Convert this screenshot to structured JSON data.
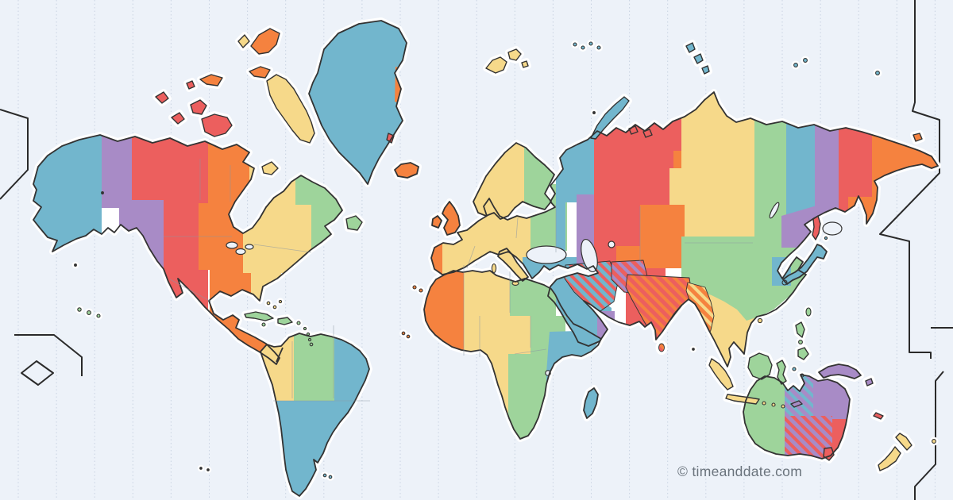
{
  "map": {
    "title": "world-time-zones-map",
    "copyright": "© timeanddate.com",
    "gridlines": {
      "count": 25,
      "style": "dotted-vertical-meridians-every-15-degrees"
    },
    "colors": {
      "background": "#edf2f9",
      "gridline": "#c9d3e2",
      "outline": "#333333",
      "halo": "#ffffff",
      "border": "#8b96a3",
      "date_line": "#2a2a2a",
      "copyright_text": "#6a737c",
      "tiny_islet": "#333333"
    },
    "palette": {
      "orange": "#f5823f",
      "yellow": "#f6d98a",
      "green": "#9ed49b",
      "teal": "#72b6cd",
      "purple": "#a88bc6",
      "red": "#ec5f5e"
    },
    "zone_color_cycle": [
      "orange",
      "yellow",
      "green",
      "teal",
      "purple",
      "red"
    ],
    "zone_color_examples": {
      "teal": "Alaska, Greenland, Moscow, Arabia, East Africa, Japan, Brazil-east/Argentina",
      "purple": "US Pacific, Samara/Caucasus, Oman, eastern-Australia-Queensland, New Guinea",
      "red": "US Mountain, NW Canada, Pakistan, Magadan, SE Australia, Tasmania",
      "orange": "US Central, Mexico, UK/Ireland, Iceland, West Africa, Chukotka/Kamchatka",
      "yellow": "US Eastern, Quebec, Central Europe, Krasnoyarsk, Indochina, New Zealand",
      "green": "Atlantic Canada, Caribbean, Eastern Europe, Egypt, China, Western Australia"
    },
    "striped_half_hour_zones": [
      {
        "region": "iran",
        "base": "teal",
        "stripe": "red"
      },
      {
        "region": "afghanistan",
        "base": "red",
        "stripe": "purple"
      },
      {
        "region": "india-sri-lanka-nepal",
        "base": "red",
        "stripe": "orange"
      },
      {
        "region": "myanmar",
        "base": "orange",
        "stripe": "yellow"
      },
      {
        "region": "australia-northern-territory",
        "base": "purple",
        "stripe": "teal"
      },
      {
        "region": "australia-south",
        "base": "purple",
        "stripe": "red"
      }
    ],
    "date_line_note": "International Date Line drawn as black zigzag polylines at the left and right map edges"
  }
}
